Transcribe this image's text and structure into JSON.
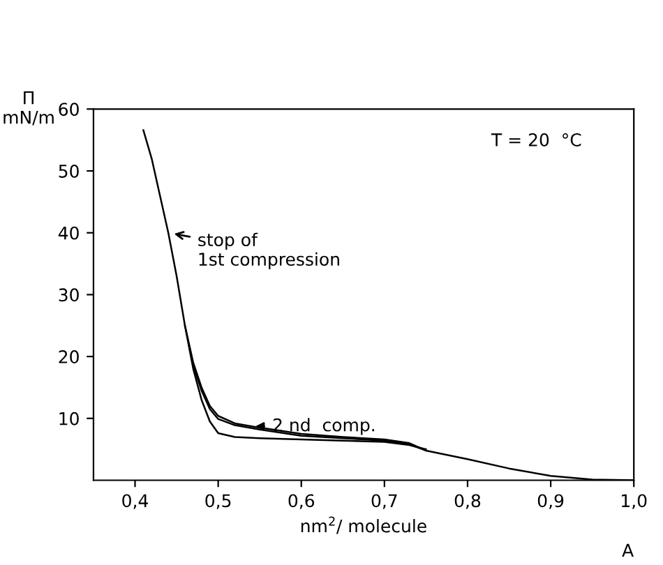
{
  "chart_data": {
    "type": "line",
    "xlabel": "nm$^{2}$/ molecule",
    "ylabel": "Π\nmN/m",
    "xlim": [
      0.35,
      1.0
    ],
    "ylim": [
      0,
      60
    ],
    "xticks": [
      {
        "value": 0.4,
        "label": "0,4"
      },
      {
        "value": 0.5,
        "label": "0,5"
      },
      {
        "value": 0.6,
        "label": "0,6"
      },
      {
        "value": 0.7,
        "label": "0,7"
      },
      {
        "value": 0.8,
        "label": "0,8"
      },
      {
        "value": 0.9,
        "label": "0,9"
      },
      {
        "value": 1.0,
        "label": "1,0"
      }
    ],
    "yticks": [
      10,
      20,
      30,
      40,
      50,
      60
    ],
    "grid": false,
    "legend": false,
    "marker": "none",
    "line_style": "solid",
    "series": [
      {
        "color": "#000000",
        "x": [
          0.41,
          0.42,
          0.43,
          0.44,
          0.45,
          0.46,
          0.47,
          0.48,
          0.49,
          0.5,
          0.52,
          0.55,
          0.6,
          0.65,
          0.7,
          0.73,
          0.75,
          0.8,
          0.85,
          0.9,
          0.95,
          1.0
        ],
        "values": [
          56.6,
          52,
          46,
          40,
          33,
          25,
          19,
          15,
          12,
          10.4,
          9.2,
          8.5,
          7.5,
          7.0,
          6.6,
          6.0,
          4.8,
          3.4,
          1.9,
          0.7,
          0.1,
          0
        ]
      },
      {
        "color": "#000000",
        "x": [
          0.47,
          0.48,
          0.49,
          0.5,
          0.52,
          0.55,
          0.6,
          0.65,
          0.7,
          0.73,
          0.75
        ],
        "values": [
          18.6,
          14.5,
          11.5,
          9.9,
          8.9,
          8.2,
          7.2,
          6.8,
          6.4,
          5.8,
          4.8
        ]
      },
      {
        "color": "#000000",
        "x": [
          0.46,
          0.47,
          0.48,
          0.49,
          0.5,
          0.52,
          0.55,
          0.6,
          0.65,
          0.7,
          0.73,
          0.75
        ],
        "values": [
          25,
          18,
          13,
          9.5,
          7.6,
          7.0,
          6.8,
          6.6,
          6.4,
          6.2,
          5.7,
          5.0
        ]
      }
    ],
    "annotations": [
      {
        "text": "stop of\n1st compression",
        "x": 0.44,
        "y": 40
      },
      {
        "text": "2 nd  comp.",
        "x": 0.54,
        "y": 8.7
      },
      "T = 20  °C",
      "A"
    ]
  }
}
